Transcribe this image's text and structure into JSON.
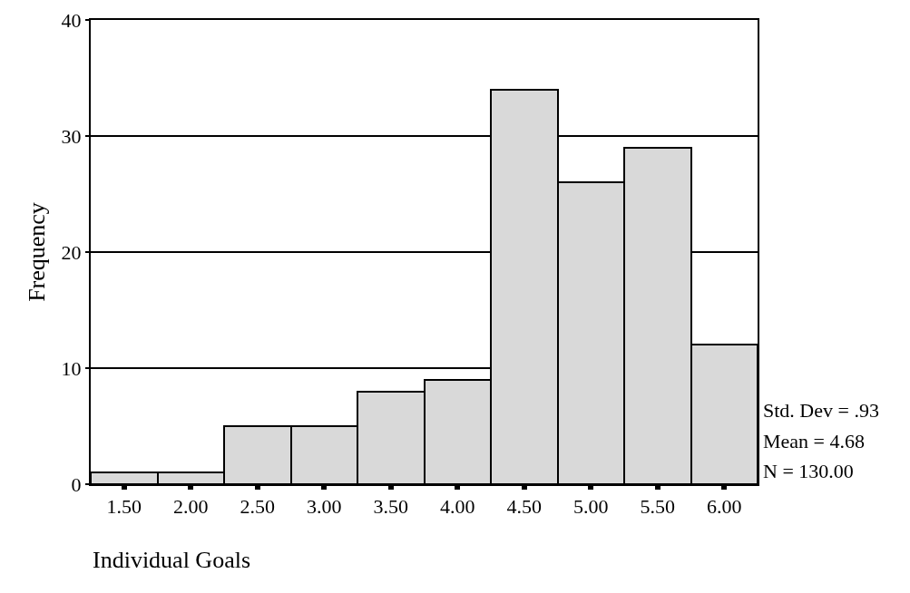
{
  "chart_data": {
    "type": "histogram",
    "xlabel": "Individual Goals",
    "ylabel": "Frequency",
    "bins": [
      1.25,
      1.75,
      2.25,
      2.75,
      3.25,
      3.75,
      4.25,
      4.75,
      5.25,
      5.75,
      6.25
    ],
    "values": [
      1,
      1,
      5,
      5,
      8,
      9,
      34,
      26,
      29,
      12
    ],
    "color": "#d9d9d9",
    "xlim": [
      1.25,
      6.25
    ],
    "xticks": [
      {
        "value": 1.5,
        "label": "1.50"
      },
      {
        "value": 2,
        "label": "2.00"
      },
      {
        "value": 2.5,
        "label": "2.50"
      },
      {
        "value": 3,
        "label": "3.00"
      },
      {
        "value": 3.5,
        "label": "3.50"
      },
      {
        "value": 4,
        "label": "4.00"
      },
      {
        "value": 4.5,
        "label": "4.50"
      },
      {
        "value": 5,
        "label": "5.00"
      },
      {
        "value": 5.5,
        "label": "5.50"
      },
      {
        "value": 6,
        "label": "6.00"
      }
    ],
    "ylim": [
      0,
      40
    ],
    "yticks": [
      0,
      10,
      20,
      30,
      40
    ],
    "grid": "y",
    "annotations": [
      "Std. Dev = .93",
      "Mean = 4.68",
      "N = 130.00"
    ]
  }
}
